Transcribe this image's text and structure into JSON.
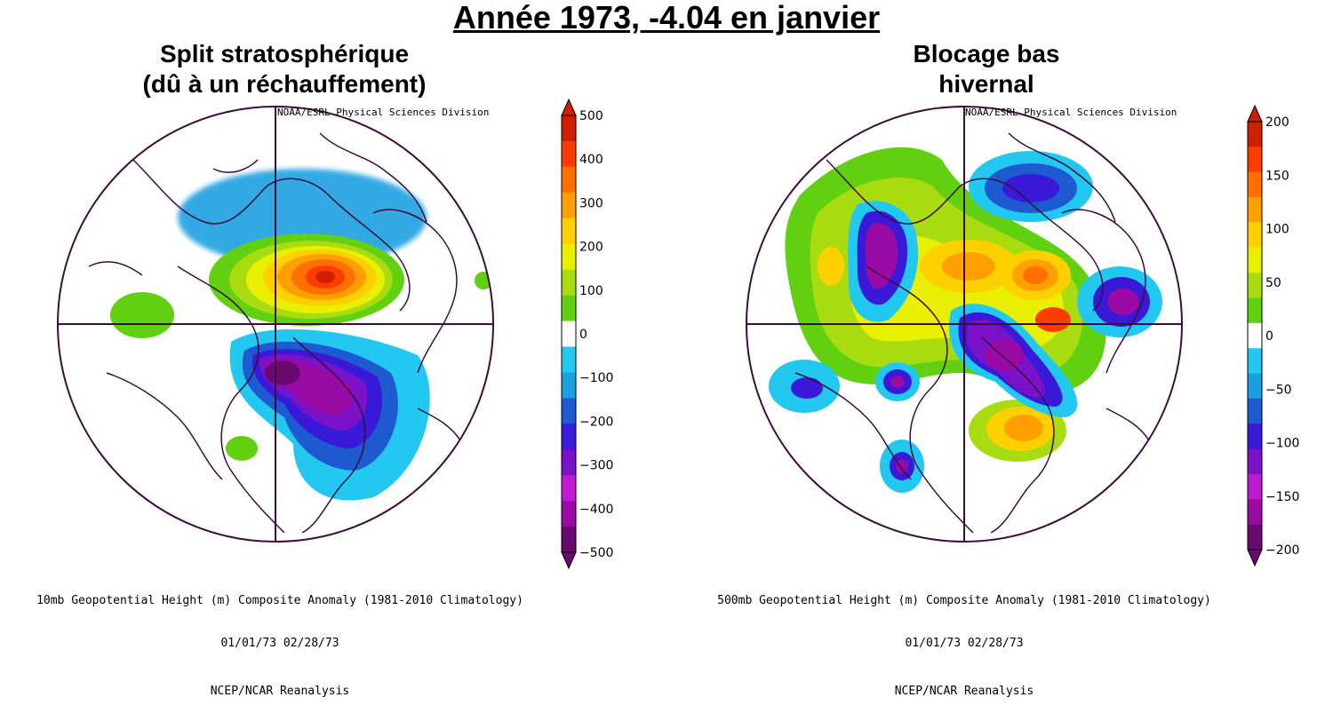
{
  "title": "Année 1973, -4.04 en janvier",
  "panels": [
    {
      "heading_line1": "Split stratosphérique",
      "heading_line2": "(dû à un réchauffement)",
      "credit": "NOAA/ESRL Physical Sciences Division",
      "caption_line1": "10mb Geopotential Height (m) Composite Anomaly (1981-2010 Climatology)",
      "caption_line2": "01/01/73 02/28/73",
      "source": "NCEP/NCAR Reanalysis",
      "colorbar": {
        "labels": [
          "500",
          "400",
          "300",
          "200",
          "100",
          "0",
          "−100",
          "−200",
          "−300",
          "−400",
          "−500"
        ]
      },
      "map_data": {
        "projection": "north polar stereographic",
        "anomalies": [
          {
            "region": "Arctic / Eurasian side",
            "sign": "positive",
            "peak": 500
          },
          {
            "region": "Canada / North America",
            "sign": "negative",
            "peak": -500
          },
          {
            "region": "Pacific / Alaska",
            "sign": "positive",
            "peak": 100
          }
        ]
      }
    },
    {
      "heading_line1": "Blocage bas",
      "heading_line2": "hivernal",
      "credit": "NOAA/ESRL Physical Sciences Division",
      "caption_line1": "500mb Geopotential Height (m) Composite Anomaly (1981-2010 Climatology)",
      "caption_line2": "01/01/73 02/28/73",
      "source": "NCEP/NCAR Reanalysis",
      "colorbar": {
        "labels": [
          "200",
          "150",
          "100",
          "50",
          "0",
          "−50",
          "−100",
          "−150",
          "−200"
        ]
      },
      "map_data": {
        "projection": "north polar stereographic",
        "anomalies": [
          {
            "region": "Greenland / North Atlantic",
            "sign": "positive",
            "peak": 200
          },
          {
            "region": "Central Asia / Siberia",
            "sign": "negative",
            "peak": -200
          },
          {
            "region": "Pacific",
            "sign": "negative",
            "peak": -150
          },
          {
            "region": "Europe",
            "sign": "positive",
            "peak": 150
          }
        ]
      }
    }
  ],
  "colors": {
    "scale": [
      "#6a0a6e",
      "#9a0aa4",
      "#c01ad0",
      "#7a12c8",
      "#3a1ad8",
      "#1e5ad0",
      "#1aa0e0",
      "#22c8f0",
      "#ffffff",
      "#60d010",
      "#a8dc10",
      "#e8f000",
      "#ffd000",
      "#ffa000",
      "#ff7000",
      "#ff3c00",
      "#d01e00"
    ],
    "line": "#3c0c3c"
  }
}
